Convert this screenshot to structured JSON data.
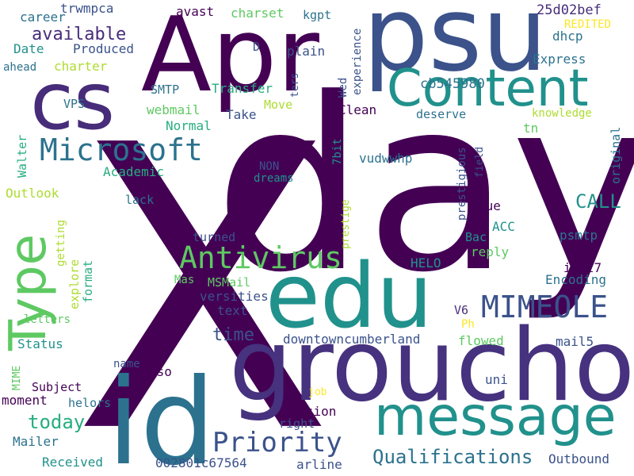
{
  "words": [
    {
      "text": "X",
      "color": "#440154",
      "vertical": false
    },
    {
      "text": "day",
      "color": "#440154",
      "vertical": false
    },
    {
      "text": "groucho",
      "color": "#46327e",
      "vertical": false
    },
    {
      "text": "psu",
      "color": "#3b528b",
      "vertical": false
    },
    {
      "text": "Apr",
      "color": "#440154",
      "vertical": false
    },
    {
      "text": "id",
      "color": "#2c728e",
      "vertical": false
    },
    {
      "text": "edu",
      "color": "#21918c",
      "vertical": false
    },
    {
      "text": "cs",
      "color": "#472c7a",
      "vertical": false
    },
    {
      "text": "Content",
      "color": "#21918c",
      "vertical": false
    },
    {
      "text": "message",
      "color": "#21918c",
      "vertical": false
    },
    {
      "text": "Type",
      "color": "#5ec962",
      "vertical": true
    },
    {
      "text": "Antivirus",
      "color": "#5ec962",
      "vertical": false
    },
    {
      "text": "Microsoft",
      "color": "#2c728e",
      "vertical": false
    },
    {
      "text": "MIMEOLE",
      "color": "#3b528b",
      "vertical": false
    },
    {
      "text": "Priority",
      "color": "#3b528b",
      "vertical": false
    },
    {
      "text": "Qualifications",
      "color": "#2c728e",
      "vertical": false
    },
    {
      "text": "available",
      "color": "#472c7a",
      "vertical": false
    },
    {
      "text": "today",
      "color": "#27ad81",
      "vertical": false
    },
    {
      "text": "time",
      "color": "#3b528b",
      "vertical": false
    },
    {
      "text": "CALL",
      "color": "#21918c",
      "vertical": false
    },
    {
      "text": "downtowncumberland",
      "color": "#3b528b",
      "vertical": false
    },
    {
      "text": "25d02bef",
      "color": "#472c7a",
      "vertical": false
    },
    {
      "text": "cb545980",
      "color": "#2c728e",
      "vertical": false
    },
    {
      "text": "trwmpca",
      "color": "#3b528b",
      "vertical": false
    },
    {
      "text": "Outlook",
      "color": "#addc30",
      "vertical": false
    },
    {
      "text": "avast",
      "color": "#440154",
      "vertical": false
    },
    {
      "text": "charset",
      "color": "#5ec962",
      "vertical": false
    },
    {
      "text": "kgpt",
      "color": "#2c728e",
      "vertical": false
    },
    {
      "text": "career",
      "color": "#2c728e",
      "vertical": false
    },
    {
      "text": "Date",
      "color": "#21918c",
      "vertical": false
    },
    {
      "text": "Produced",
      "color": "#3b528b",
      "vertical": false
    },
    {
      "text": "charter",
      "color": "#addc30",
      "vertical": false
    },
    {
      "text": "ahead",
      "color": "#2c728e",
      "vertical": false
    },
    {
      "text": "VPS",
      "color": "#2c728e",
      "vertical": false
    },
    {
      "text": "SMTP",
      "color": "#2c728e",
      "vertical": false
    },
    {
      "text": "Transfer",
      "color": "#27ad81",
      "vertical": false
    },
    {
      "text": "webmail",
      "color": "#5ec962",
      "vertical": false
    },
    {
      "text": "Normal",
      "color": "#27ad81",
      "vertical": false
    },
    {
      "text": "Take",
      "color": "#3b528b",
      "vertical": false
    },
    {
      "text": "Move",
      "color": "#addc30",
      "vertical": false
    },
    {
      "text": "Clean",
      "color": "#440154",
      "vertical": false
    },
    {
      "text": "Academic",
      "color": "#27ad81",
      "vertical": false
    },
    {
      "text": "NON",
      "color": "#3b528b",
      "vertical": false
    },
    {
      "text": "dreams",
      "color": "#21918c",
      "vertical": false
    },
    {
      "text": "vudwwhp",
      "color": "#2c728e",
      "vertical": false
    },
    {
      "text": "lack",
      "color": "#2c728e",
      "vertical": false
    },
    {
      "text": "Walter",
      "color": "#27ad81",
      "vertical": true
    },
    {
      "text": "getting",
      "color": "#addc30",
      "vertical": true
    },
    {
      "text": "explore",
      "color": "#addc30",
      "vertical": true
    },
    {
      "text": "format",
      "color": "#27ad81",
      "vertical": true
    },
    {
      "text": "letters",
      "color": "#5ec962",
      "vertical": false
    },
    {
      "text": "Status",
      "color": "#21918c",
      "vertical": false
    },
    {
      "text": "MIME",
      "color": "#5ec962",
      "vertical": true
    },
    {
      "text": "moment",
      "color": "#440154",
      "vertical": false
    },
    {
      "text": "Subject",
      "color": "#440154",
      "vertical": false
    },
    {
      "text": "helors",
      "color": "#2c728e",
      "vertical": false
    },
    {
      "text": "Mailer",
      "color": "#2c728e",
      "vertical": false
    },
    {
      "text": "Received",
      "color": "#21918c",
      "vertical": false
    },
    {
      "text": "002801c67564",
      "color": "#3b528b",
      "vertical": false
    },
    {
      "text": "arline",
      "color": "#3b528b",
      "vertical": false
    },
    {
      "text": "name",
      "color": "#3b528b",
      "vertical": false
    },
    {
      "text": "iso",
      "color": "#440154",
      "vertical": false
    },
    {
      "text": "turned",
      "color": "#3b528b",
      "vertical": false
    },
    {
      "text": "Mas",
      "color": "#5ec962",
      "vertical": false
    },
    {
      "text": "MSMail",
      "color": "#5ec962",
      "vertical": false
    },
    {
      "text": "versities",
      "color": "#3b528b",
      "vertical": false
    },
    {
      "text": "text",
      "color": "#3b528b",
      "vertical": false
    },
    {
      "text": "job",
      "color": "#fde725",
      "vertical": false
    },
    {
      "text": "right",
      "color": "#3b528b",
      "vertical": false
    },
    {
      "text": "Version",
      "color": "#440154",
      "vertical": false
    },
    {
      "text": "D",
      "color": "#3b528b",
      "vertical": false
    },
    {
      "text": "plain",
      "color": "#3b528b",
      "vertical": false
    },
    {
      "text": "ters",
      "color": "#3b528b",
      "vertical": true
    },
    {
      "text": "Wed",
      "color": "#3b528b",
      "vertical": true
    },
    {
      "text": "experience",
      "color": "#3b528b",
      "vertical": true
    },
    {
      "text": "7bit",
      "color": "#21918c",
      "vertical": true
    },
    {
      "text": "prestige",
      "color": "#addc30",
      "vertical": true
    },
    {
      "text": "prestigious",
      "color": "#3b528b",
      "vertical": true
    },
    {
      "text": "field",
      "color": "#3b528b",
      "vertical": true
    },
    {
      "text": "original",
      "color": "#2c728e",
      "vertical": true
    },
    {
      "text": "deserve",
      "color": "#2c728e",
      "vertical": false
    },
    {
      "text": "knowledge",
      "color": "#addc30",
      "vertical": false
    },
    {
      "text": "tn",
      "color": "#5ec962",
      "vertical": false
    },
    {
      "text": "Express",
      "color": "#2c728e",
      "vertical": false
    },
    {
      "text": "REDITED",
      "color": "#fde725",
      "vertical": false
    },
    {
      "text": "dhcp",
      "color": "#2c728e",
      "vertical": false
    },
    {
      "text": "Tue",
      "color": "#440154",
      "vertical": false
    },
    {
      "text": "ACC",
      "color": "#21918c",
      "vertical": false
    },
    {
      "text": "Bac",
      "color": "#21918c",
      "vertical": false
    },
    {
      "text": "reply",
      "color": "#5ec962",
      "vertical": false
    },
    {
      "text": "psmtp",
      "color": "#2c728e",
      "vertical": false
    },
    {
      "text": "HELO",
      "color": "#21918c",
      "vertical": false
    },
    {
      "text": "inet7",
      "color": "#440154",
      "vertical": false
    },
    {
      "text": "Encoding",
      "color": "#2c728e",
      "vertical": false
    },
    {
      "text": "V6",
      "color": "#472c7a",
      "vertical": false
    },
    {
      "text": "Ph",
      "color": "#fde725",
      "vertical": false
    },
    {
      "text": "flowed",
      "color": "#5ec962",
      "vertical": false
    },
    {
      "text": "mail5",
      "color": "#3b528b",
      "vertical": false
    },
    {
      "text": "uni",
      "color": "#3b528b",
      "vertical": false
    },
    {
      "text": "Outbound",
      "color": "#3b528b",
      "vertical": false
    }
  ]
}
